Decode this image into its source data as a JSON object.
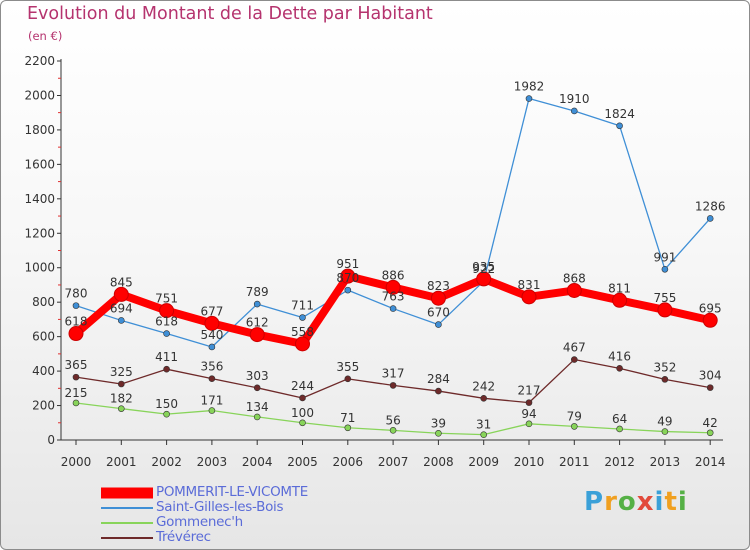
{
  "page": {
    "title": "Evolution du Montant de la Dette par Habitant",
    "subtitle": "(en €)",
    "brand": "Proxiti",
    "brand_colors": [
      "#3aa0d8",
      "#f0a020",
      "#55b045",
      "#e24a3b"
    ]
  },
  "chart_data": {
    "type": "line",
    "title": "Evolution du Montant de la Dette par Habitant",
    "subtitle": "(en €)",
    "xlabel": "",
    "ylabel": "",
    "x": [
      "2000",
      "2001",
      "2002",
      "2003",
      "2004",
      "2005",
      "2006",
      "2007",
      "2008",
      "2009",
      "2010",
      "2011",
      "2012",
      "2013",
      "2014"
    ],
    "ylim": [
      0,
      2200
    ],
    "yticks": [
      0,
      200,
      400,
      600,
      800,
      1000,
      1200,
      1400,
      1600,
      1800,
      2000,
      2200
    ],
    "grid": false,
    "legend": "bottom-left",
    "series": [
      {
        "name": "POMMERIT-LE-VICOMTE",
        "color": "#ff0000",
        "values": [
          618,
          845,
          751,
          677,
          612,
          558,
          951,
          886,
          823,
          935,
          831,
          868,
          811,
          755,
          695
        ]
      },
      {
        "name": "Saint-Gilles-les-Bois",
        "color": "#3f8fd6",
        "values": [
          780,
          694,
          618,
          540,
          789,
          711,
          870,
          763,
          670,
          922,
          1982,
          1910,
          1824,
          991,
          1286
        ]
      },
      {
        "name": "Gommenec'h",
        "color": "#88d45a",
        "values": [
          215,
          182,
          150,
          171,
          134,
          100,
          71,
          56,
          39,
          31,
          94,
          79,
          64,
          49,
          42
        ]
      },
      {
        "name": "Trévérec",
        "color": "#6e2a2a",
        "values": [
          365,
          325,
          411,
          356,
          303,
          244,
          355,
          317,
          284,
          242,
          217,
          467,
          416,
          352,
          304
        ]
      }
    ],
    "point_labels": [
      [
        "618",
        "845",
        "751",
        "677",
        "612",
        "558",
        "951",
        "886",
        "823",
        "935",
        "831",
        "868",
        "811",
        "755",
        "695"
      ],
      [
        "780",
        "694",
        "618",
        "540",
        "789",
        "711",
        "870",
        "763",
        "670",
        "922",
        "1982",
        "1910",
        "1824",
        "991",
        "1286"
      ],
      [
        "215",
        "182",
        "150",
        "171",
        "134",
        "100",
        "71",
        "56",
        "39",
        "31",
        "94",
        "79",
        "64",
        "49",
        "42"
      ],
      [
        "365",
        "325",
        "411",
        "356",
        "303",
        "244",
        "355",
        "317",
        "284",
        "242",
        "217",
        "467",
        "416",
        "352",
        "304"
      ]
    ]
  }
}
